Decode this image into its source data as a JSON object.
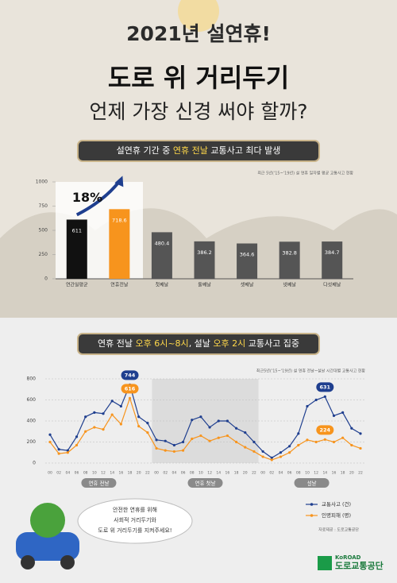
{
  "header": {
    "title": "2021년 설연휴!",
    "headline": "도로 위 거리두기",
    "subheadline": "언제 가장 신경 써야 할까?"
  },
  "chart_data": [
    {
      "type": "bar",
      "title": [
        "설연휴 기간 중 ",
        "연휴 전날",
        " 교통사고 최다 발생"
      ],
      "subtitle": "최근 5년('15~'19년) 설 연휴 일자별 평균 교통사고 현황",
      "annotation": "18%",
      "categories": [
        "연간일평균",
        "연휴전날",
        "첫째날",
        "둘째날",
        "셋째날",
        "넷째날",
        "다섯째날"
      ],
      "values": [
        611,
        718.6,
        480.4,
        386.2,
        364.6,
        382.8,
        384.7
      ],
      "colors": [
        "#111111",
        "#f7941d",
        "#555555",
        "#555555",
        "#555555",
        "#555555",
        "#555555"
      ],
      "ylim": [
        0,
        1000
      ],
      "yticks": [
        0,
        250,
        500,
        750,
        1000
      ],
      "grid": false
    },
    {
      "type": "line",
      "title": [
        "연휴 전날 ",
        "오후 6시~8시",
        ", 설날 ",
        "오후 2시",
        " 교통사고 집중"
      ],
      "subtitle": "최근5년('15~'19년) 설 연휴 전날~설날 시간대별 교통사고 현황",
      "categories": [
        "00",
        "02",
        "04",
        "06",
        "08",
        "10",
        "12",
        "14",
        "16",
        "18",
        "20",
        "22",
        "00",
        "02",
        "04",
        "06",
        "08",
        "10",
        "12",
        "14",
        "16",
        "18",
        "20",
        "22",
        "00",
        "02",
        "04",
        "06",
        "08",
        "10",
        "12",
        "14",
        "16",
        "18",
        "20",
        "22"
      ],
      "groups": [
        "연휴 전날",
        "연휴 첫날",
        "설날"
      ],
      "series": [
        {
          "name": "교통사고 (건)",
          "color": "#1f3f8f",
          "values": [
            270,
            130,
            120,
            250,
            440,
            480,
            470,
            590,
            540,
            744,
            440,
            380,
            220,
            210,
            170,
            200,
            410,
            440,
            340,
            400,
            400,
            330,
            290,
            200,
            110,
            50,
            100,
            160,
            280,
            540,
            600,
            631,
            450,
            480,
            330,
            280
          ],
          "value_labels": [
            null,
            null,
            null,
            null,
            null,
            null,
            null,
            null,
            null,
            "744",
            null,
            null,
            null,
            null,
            null,
            null,
            null,
            null,
            null,
            null,
            null,
            null,
            null,
            null,
            null,
            null,
            null,
            null,
            null,
            null,
            null,
            "631",
            null,
            null,
            null,
            null
          ]
        },
        {
          "name": "인명피해 (명)",
          "color": "#f7941d",
          "values": [
            200,
            90,
            100,
            170,
            300,
            340,
            320,
            460,
            370,
            616,
            350,
            290,
            140,
            120,
            110,
            120,
            230,
            260,
            210,
            240,
            260,
            200,
            150,
            110,
            60,
            30,
            60,
            100,
            170,
            220,
            200,
            224,
            200,
            240,
            170,
            140
          ],
          "value_labels": [
            null,
            null,
            null,
            null,
            null,
            null,
            null,
            null,
            null,
            "616",
            null,
            null,
            null,
            null,
            null,
            null,
            null,
            null,
            null,
            null,
            null,
            null,
            null,
            null,
            null,
            null,
            null,
            null,
            null,
            null,
            null,
            "224",
            null,
            null,
            null,
            null
          ]
        }
      ],
      "ylim": [
        0,
        800
      ],
      "yticks": [
        0,
        200,
        400,
        600,
        800
      ],
      "grid": true,
      "source": "자료제공 : 도로교통공단"
    }
  ],
  "bubble": [
    "안전한 연휴를 위해",
    "사회적 거리두기와",
    "도로 위 거리두기를 지켜주세요!"
  ],
  "logo": {
    "brand": "KoROAD",
    "name": "도로교통공단"
  }
}
